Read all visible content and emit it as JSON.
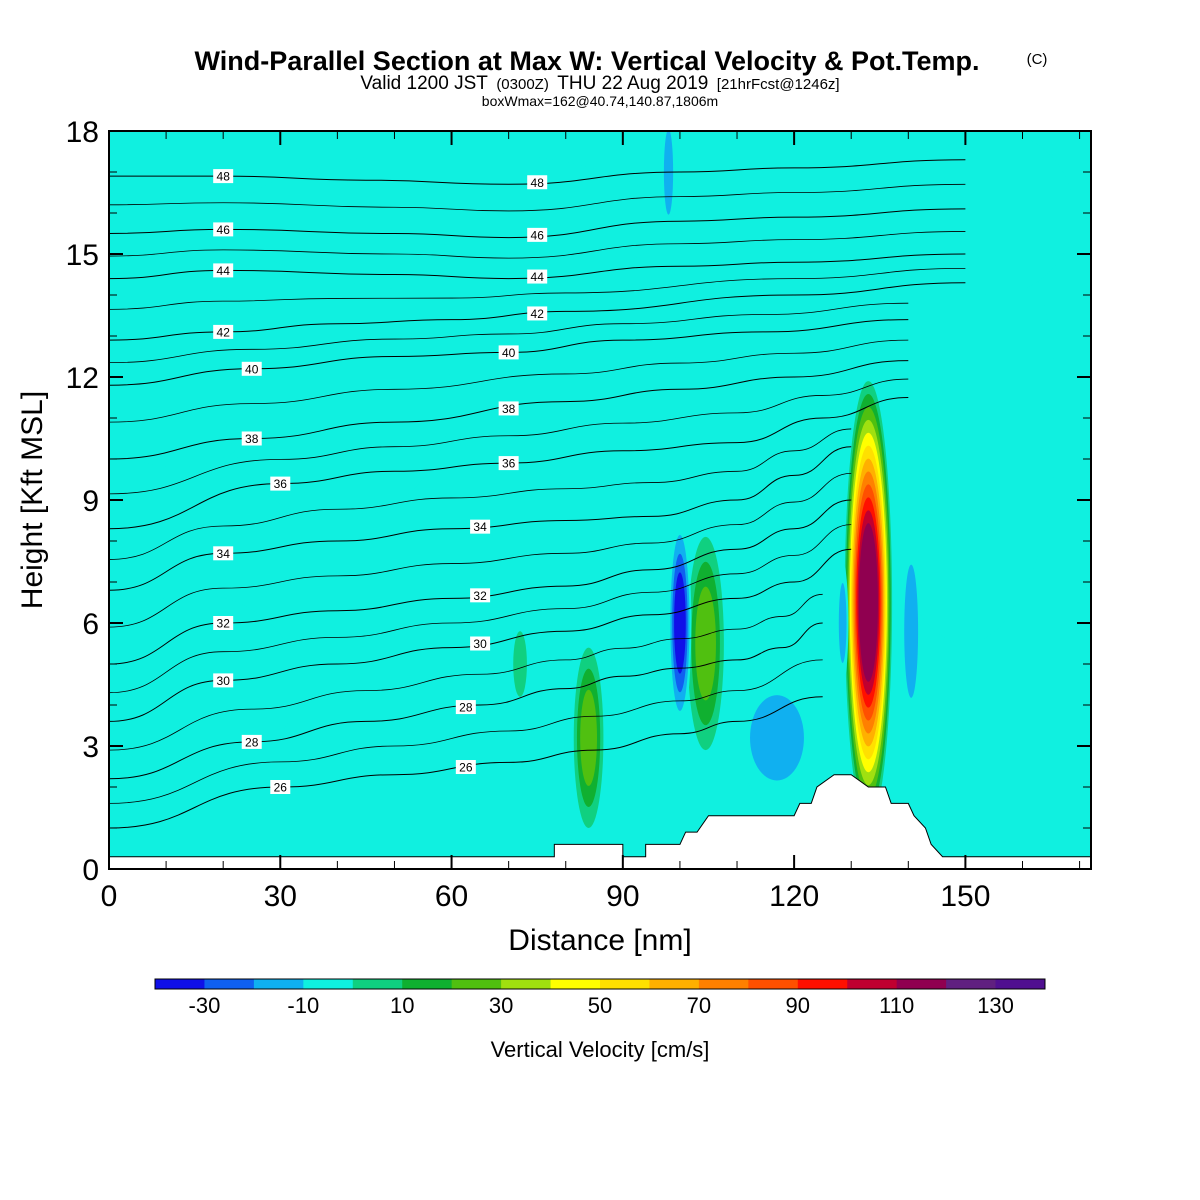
{
  "chart_data": {
    "type": "contour",
    "title": "Wind-Parallel Section at Max W: Vertical Velocity & Pot.Temp.",
    "title_mark": "(C)",
    "subtitle": {
      "valid": "Valid 1200 JST",
      "utc": "(0300Z)",
      "date": "THU 22 Aug 2019",
      "fcst": "[21hrFcst@1246z]"
    },
    "box_info": "boxWmax=162@40.74,140.87,1806m",
    "xlabel": "Distance [nm]",
    "ylabel": "Height [Kft MSL]",
    "xlim": [
      0,
      172
    ],
    "ylim": [
      0,
      18
    ],
    "xticks": [
      0,
      30,
      60,
      90,
      120,
      150
    ],
    "yticks": [
      0,
      3,
      6,
      9,
      12,
      15,
      18
    ],
    "colorbar": {
      "label": "Vertical Velocity [cm/s]",
      "levels": [
        -40,
        -30,
        -20,
        -10,
        0,
        10,
        20,
        30,
        40,
        50,
        60,
        70,
        80,
        90,
        100,
        110,
        120,
        130,
        140
      ],
      "tick_values": [
        -30,
        -10,
        10,
        30,
        50,
        70,
        90,
        110,
        130
      ],
      "tick_labels": [
        "-30",
        "-10",
        "10",
        "30",
        "50",
        "70",
        "90",
        "110",
        "130"
      ],
      "colors": [
        "#1010e8",
        "#1060f0",
        "#10b0f0",
        "#10f0e0",
        "#10d080",
        "#10b030",
        "#50c010",
        "#a0e010",
        "#ffff00",
        "#ffe000",
        "#ffb000",
        "#ff8000",
        "#ff5000",
        "#ff1000",
        "#c00030",
        "#900050",
        "#602080",
        "#501090"
      ]
    },
    "theta_contours": [
      {
        "label": "26",
        "x": [
          0,
          30,
          50,
          70,
          85,
          100,
          110,
          125
        ],
        "z": [
          1.0,
          2.0,
          2.3,
          2.6,
          2.9,
          3.3,
          3.6,
          4.2
        ]
      },
      {
        "label": "28",
        "x": [
          0,
          25,
          45,
          65,
          80,
          90,
          100,
          110,
          118,
          125
        ],
        "z": [
          2.2,
          3.1,
          3.6,
          4.0,
          4.4,
          4.7,
          4.9,
          5.1,
          5.4,
          6.0
        ]
      },
      {
        "label": "30",
        "x": [
          0,
          20,
          40,
          60,
          80,
          95,
          110,
          120,
          130
        ],
        "z": [
          3.6,
          4.6,
          5.0,
          5.4,
          5.8,
          6.2,
          6.6,
          7.0,
          7.8
        ]
      },
      {
        "label": "32",
        "x": [
          0,
          20,
          40,
          60,
          80,
          95,
          110,
          120,
          130
        ],
        "z": [
          5.0,
          6.0,
          6.3,
          6.6,
          6.9,
          7.3,
          7.8,
          8.3,
          9.0
        ]
      },
      {
        "label": "34",
        "x": [
          0,
          20,
          40,
          60,
          80,
          95,
          110,
          120,
          130
        ],
        "z": [
          6.8,
          7.7,
          8.0,
          8.3,
          8.5,
          8.6,
          9.0,
          9.6,
          10.3
        ]
      },
      {
        "label": "36",
        "x": [
          0,
          30,
          50,
          70,
          90,
          110,
          125,
          140
        ],
        "z": [
          8.3,
          9.4,
          9.7,
          9.9,
          10.2,
          10.4,
          11.0,
          11.5
        ]
      },
      {
        "label": "38",
        "x": [
          0,
          25,
          50,
          80,
          100,
          120,
          140
        ],
        "z": [
          10.0,
          10.5,
          10.9,
          11.4,
          11.7,
          12.0,
          12.4
        ]
      },
      {
        "label": "40",
        "x": [
          0,
          25,
          50,
          70,
          90,
          115,
          140
        ],
        "z": [
          11.8,
          12.2,
          12.5,
          12.6,
          12.9,
          13.1,
          13.4
        ]
      },
      {
        "label": "42",
        "x": [
          0,
          20,
          40,
          60,
          80,
          120,
          150
        ],
        "z": [
          12.9,
          13.1,
          13.3,
          13.4,
          13.6,
          14.0,
          14.3
        ]
      },
      {
        "label": "44",
        "x": [
          0,
          20,
          50,
          70,
          100,
          120,
          150
        ],
        "z": [
          14.4,
          14.6,
          14.5,
          14.4,
          14.7,
          14.8,
          15.0
        ]
      },
      {
        "label": "46",
        "x": [
          0,
          20,
          50,
          70,
          100,
          120,
          150
        ],
        "z": [
          15.5,
          15.6,
          15.5,
          15.4,
          15.8,
          15.9,
          16.1
        ]
      },
      {
        "label": "48",
        "x": [
          0,
          20,
          45,
          70,
          100,
          120,
          150
        ],
        "z": [
          16.9,
          16.9,
          16.8,
          16.7,
          17.0,
          17.1,
          17.3
        ]
      }
    ],
    "terrain": {
      "x": [
        0,
        78,
        78,
        81,
        90,
        90,
        92,
        93,
        94,
        94,
        95,
        97,
        100,
        101,
        103,
        105,
        107,
        111,
        120,
        121,
        123,
        124,
        127,
        129,
        130,
        133,
        136,
        137,
        140,
        141,
        143,
        144,
        146,
        150,
        172
      ],
      "z": [
        0.3,
        0.3,
        0.6,
        0.6,
        0.6,
        0.3,
        0.3,
        0.3,
        0.3,
        0.6,
        0.6,
        0.6,
        0.6,
        0.9,
        0.9,
        1.3,
        1.3,
        1.3,
        1.3,
        1.6,
        1.6,
        2.0,
        2.3,
        2.3,
        2.3,
        2.0,
        2.0,
        1.6,
        1.6,
        1.3,
        1.0,
        0.6,
        0.3,
        0.3,
        0.3
      ]
    },
    "w_features": [
      {
        "kind": "updraft",
        "x": 133,
        "z": 6.5,
        "peak": 115
      },
      {
        "kind": "updraft",
        "x": 104.5,
        "z": 5.5,
        "peak": 30
      },
      {
        "kind": "updraft",
        "x": 84,
        "z": 3.2,
        "peak": 30
      },
      {
        "kind": "updraft",
        "x": 72,
        "z": 5.0,
        "peak": 12
      },
      {
        "kind": "downdraft",
        "x": 100,
        "z": 6.0,
        "peak": -35
      },
      {
        "kind": "downdraft",
        "x": 117,
        "z": 3.2,
        "peak": -22
      },
      {
        "kind": "downdraft",
        "x": 140.5,
        "z": 5.8,
        "peak": -22
      },
      {
        "kind": "downdraft",
        "x": 128.5,
        "z": 6.0,
        "peak": -22
      },
      {
        "kind": "downdraft",
        "x": 98,
        "z": 17.0,
        "peak": -20
      }
    ],
    "grid": false
  }
}
